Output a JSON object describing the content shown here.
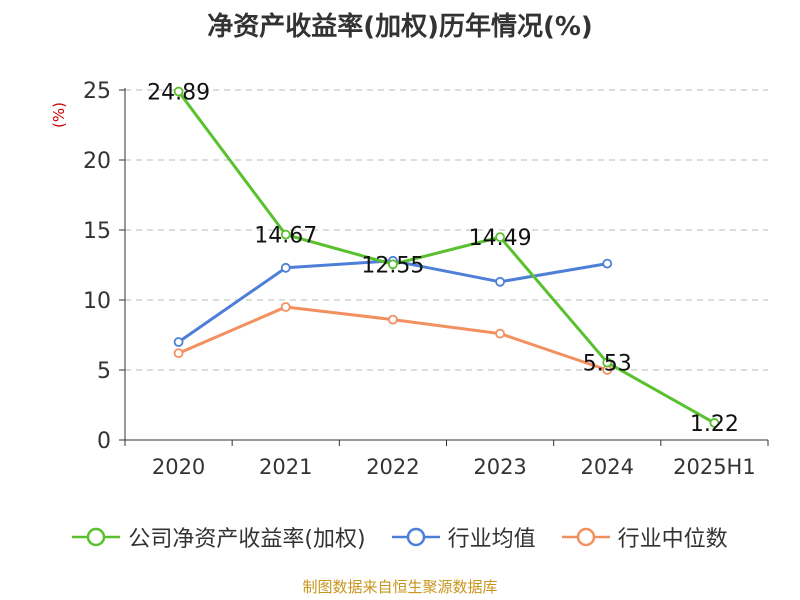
{
  "chart_data": {
    "type": "line",
    "title": "净资产收益率(加权)历年情况(%)",
    "ylabel": "(%)",
    "categories": [
      "2020",
      "2021",
      "2022",
      "2023",
      "2024",
      "2025H1"
    ],
    "ylim": [
      0,
      25
    ],
    "yticks": [
      0,
      5,
      10,
      15,
      20,
      25
    ],
    "grid": true,
    "legend_position": "bottom",
    "series": [
      {
        "name": "公司净资产收益率(加权)",
        "color": "#5ac12e",
        "values": [
          24.89,
          14.67,
          12.55,
          14.49,
          5.53,
          1.22
        ],
        "labels": [
          "24.89",
          "14.67",
          "12.55",
          "14.49",
          "5.53",
          "1.22"
        ]
      },
      {
        "name": "行业均值",
        "color": "#4e7fd8",
        "values": [
          7.0,
          12.3,
          12.8,
          11.3,
          12.6,
          null
        ]
      },
      {
        "name": "行业中位数",
        "color": "#f39060",
        "values": [
          6.2,
          9.5,
          8.6,
          7.6,
          5.0,
          null
        ]
      }
    ]
  },
  "footer": {
    "source": "制图数据来自恒生聚源数据库"
  }
}
